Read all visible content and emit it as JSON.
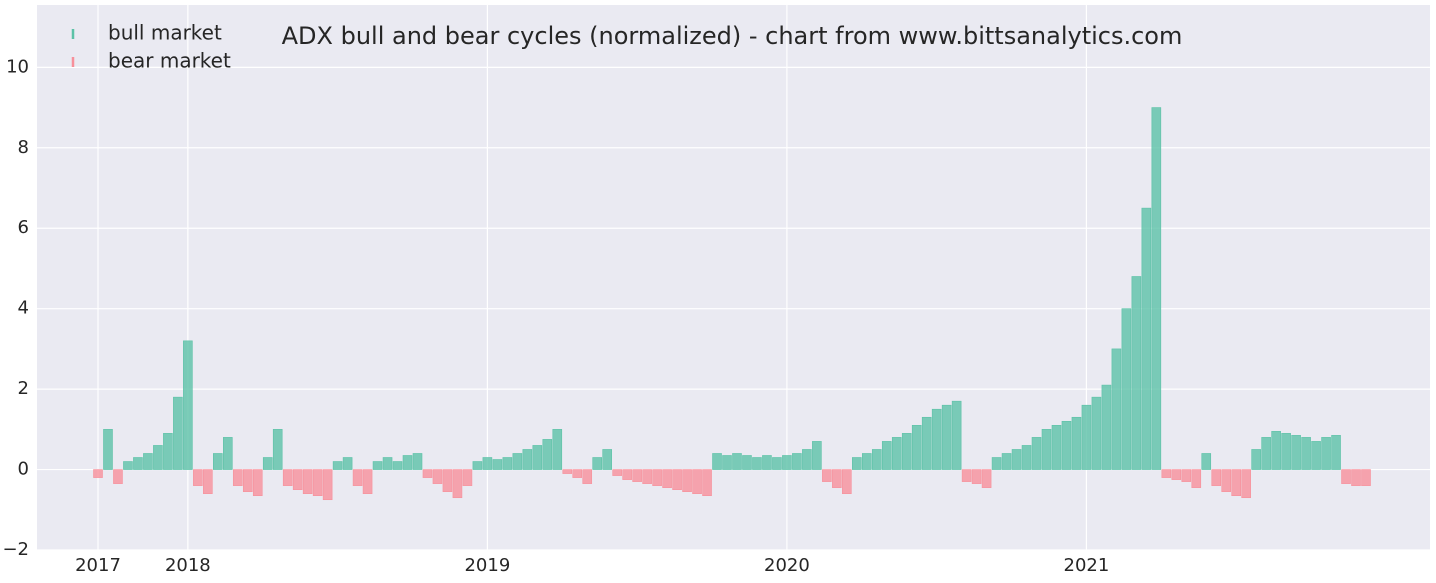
{
  "chart_data": {
    "type": "bar",
    "title": "ADX bull and bear cycles (normalized)  - chart from www.bittsanalytics.com",
    "categories": [
      "2017",
      null,
      null,
      null,
      null,
      null,
      null,
      null,
      null,
      "2018",
      null,
      null,
      null,
      null,
      null,
      null,
      null,
      null,
      null,
      null,
      null,
      null,
      null,
      null,
      null,
      null,
      null,
      null,
      null,
      null,
      null,
      null,
      null,
      null,
      null,
      null,
      null,
      null,
      null,
      "2019",
      null,
      null,
      null,
      null,
      null,
      null,
      null,
      null,
      null,
      null,
      null,
      null,
      null,
      null,
      null,
      null,
      null,
      null,
      null,
      null,
      null,
      null,
      null,
      null,
      null,
      null,
      null,
      null,
      null,
      "2020",
      null,
      null,
      null,
      null,
      null,
      null,
      null,
      null,
      null,
      null,
      null,
      null,
      null,
      null,
      null,
      null,
      null,
      null,
      null,
      null,
      null,
      null,
      null,
      null,
      null,
      null,
      null,
      null,
      null,
      "2021",
      null,
      null,
      null,
      null,
      null,
      null,
      null,
      null,
      null,
      null,
      null,
      null,
      null,
      null,
      null,
      null,
      null,
      null,
      null,
      null,
      null,
      null,
      null,
      null,
      null,
      null,
      null,
      null
    ],
    "series": [
      {
        "name": "bull market",
        "color": "#5cc2a7",
        "values": [
          null,
          1.0,
          null,
          0.2,
          0.3,
          0.4,
          0.6,
          0.9,
          1.8,
          3.2,
          null,
          null,
          0.4,
          0.8,
          null,
          null,
          null,
          0.3,
          1.0,
          null,
          null,
          null,
          null,
          null,
          0.2,
          0.3,
          null,
          null,
          0.2,
          0.3,
          0.2,
          0.35,
          0.4,
          null,
          null,
          null,
          null,
          null,
          0.2,
          0.3,
          0.25,
          0.3,
          0.4,
          0.5,
          0.6,
          0.75,
          1.0,
          null,
          null,
          null,
          0.3,
          0.5,
          null,
          null,
          null,
          null,
          null,
          null,
          null,
          null,
          null,
          null,
          0.4,
          0.35,
          0.4,
          0.35,
          0.3,
          0.35,
          0.3,
          0.35,
          0.4,
          0.5,
          0.7,
          null,
          null,
          null,
          0.3,
          0.4,
          0.5,
          0.7,
          0.8,
          0.9,
          1.1,
          1.3,
          1.5,
          1.6,
          1.7,
          null,
          null,
          null,
          0.3,
          0.4,
          0.5,
          0.6,
          0.8,
          1.0,
          1.1,
          1.2,
          1.3,
          1.6,
          1.8,
          2.1,
          3.0,
          4.0,
          4.8,
          6.5,
          9.0,
          null,
          null,
          null,
          null,
          0.4,
          null,
          null,
          null,
          null,
          0.5,
          0.8,
          0.95,
          0.9,
          0.85,
          0.8,
          0.7,
          0.8,
          0.85,
          null,
          null,
          null
        ]
      },
      {
        "name": "bear market",
        "color": "#f7909b",
        "values": [
          -0.2,
          null,
          -0.35,
          null,
          null,
          null,
          null,
          null,
          null,
          null,
          -0.4,
          -0.6,
          null,
          null,
          -0.4,
          -0.55,
          -0.65,
          null,
          null,
          -0.4,
          -0.5,
          -0.6,
          -0.65,
          -0.75,
          null,
          null,
          -0.4,
          -0.6,
          null,
          null,
          null,
          null,
          null,
          -0.2,
          -0.35,
          -0.55,
          -0.7,
          -0.4,
          null,
          null,
          null,
          null,
          null,
          null,
          null,
          null,
          null,
          -0.1,
          -0.2,
          -0.35,
          null,
          null,
          -0.15,
          -0.25,
          -0.3,
          -0.35,
          -0.4,
          -0.45,
          -0.5,
          -0.55,
          -0.6,
          -0.65,
          null,
          null,
          null,
          null,
          null,
          null,
          null,
          null,
          null,
          null,
          null,
          -0.3,
          -0.45,
          -0.6,
          null,
          null,
          null,
          null,
          null,
          null,
          null,
          null,
          null,
          null,
          null,
          -0.3,
          -0.35,
          -0.45,
          null,
          null,
          null,
          null,
          null,
          null,
          null,
          null,
          null,
          null,
          null,
          null,
          null,
          null,
          null,
          null,
          null,
          -0.2,
          -0.25,
          -0.3,
          -0.45,
          null,
          -0.4,
          -0.55,
          -0.65,
          -0.7,
          null,
          null,
          null,
          null,
          null,
          null,
          null,
          null,
          null,
          -0.35,
          -0.4,
          -0.4
        ]
      }
    ],
    "ylim": [
      -2,
      11.55
    ],
    "yticks": [
      {
        "value": -2,
        "label": "−2"
      },
      0,
      2,
      4,
      6,
      8,
      10
    ],
    "grid": true,
    "legend": "upper left"
  }
}
